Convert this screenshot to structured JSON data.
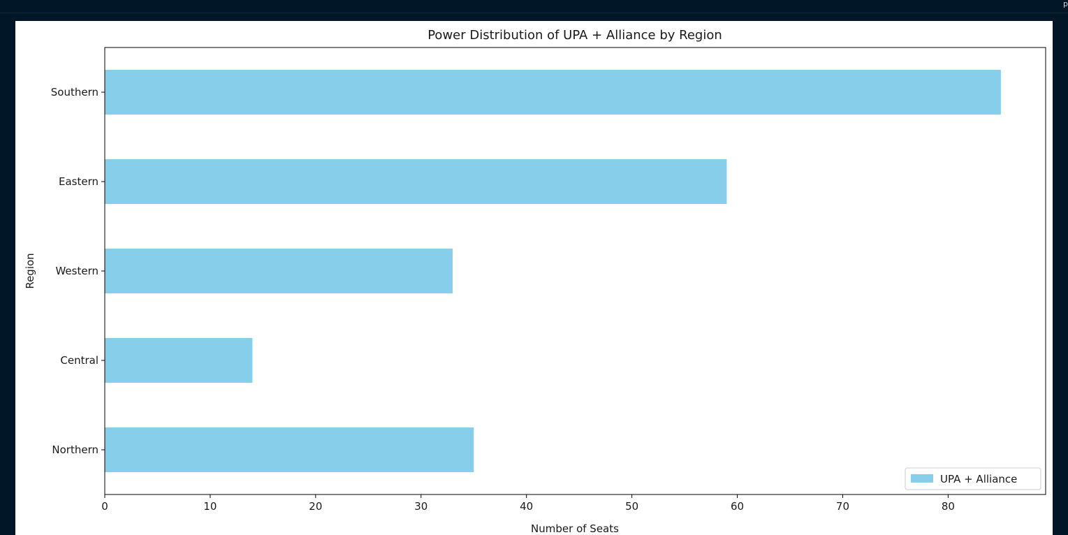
{
  "colors": {
    "page_background": "#011627",
    "figure_background": "#ffffff",
    "bar_color": "#87CEEB",
    "axis_color": "#000000",
    "text_color": "#1a1a1a"
  },
  "corner_text": "p",
  "chart_data": {
    "type": "bar",
    "orientation": "horizontal",
    "title": "Power Distribution of UPA + Alliance by Region",
    "xlabel": "Number of Seats",
    "ylabel": "Region",
    "categories": [
      "Northern",
      "Central",
      "Western",
      "Eastern",
      "Southern"
    ],
    "series": [
      {
        "name": "UPA + Alliance",
        "values": [
          35,
          14,
          33,
          59,
          85
        ]
      }
    ],
    "xlim": [
      0,
      89.25
    ],
    "xticks": [
      0,
      10,
      20,
      30,
      40,
      50,
      60,
      70,
      80
    ],
    "grid": false,
    "legend_position": "lower right"
  }
}
